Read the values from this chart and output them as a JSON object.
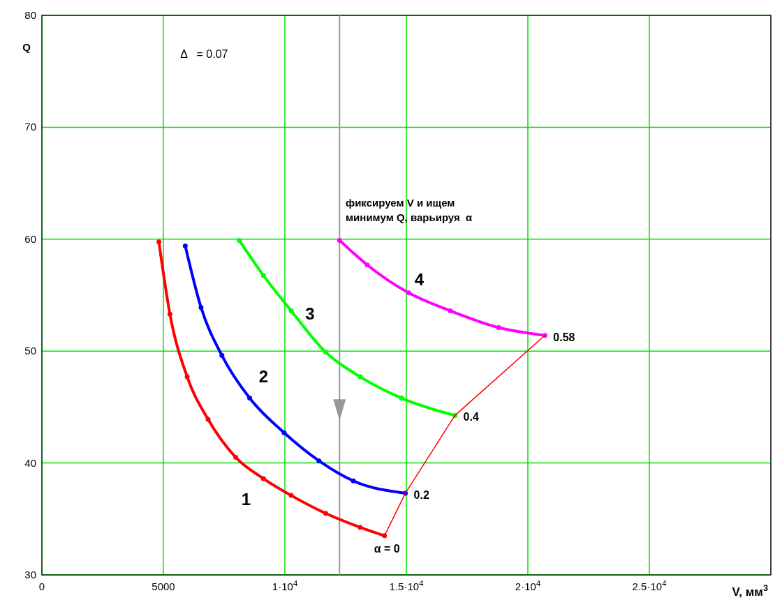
{
  "chart_data": {
    "type": "line",
    "xlabel": "V, мм$^{3}$",
    "ylabel": "Q",
    "xlim": [
      0,
      30000
    ],
    "ylim": [
      30,
      80
    ],
    "xticks": [
      0,
      5000,
      {
        "value": 10000,
        "label": "1·10$^{4}$"
      },
      {
        "value": 15000,
        "label": "1.5·10$^{4}$"
      },
      {
        "value": 20000,
        "label": "2·10$^{4}$"
      },
      {
        "value": 25000,
        "label": "2.5·10$^{4}$"
      }
    ],
    "yticks": [
      30,
      40,
      50,
      60,
      70,
      80
    ],
    "grid": true,
    "marker": "circle",
    "series": [
      {
        "name": "1",
        "color": "#ff0000",
        "x": [
          4815,
          5270,
          5980,
          6840,
          7980,
          9120,
          10260,
          11680,
          13100,
          14100
        ],
        "values": [
          59.75,
          53.3,
          47.7,
          43.9,
          40.5,
          38.6,
          37.1,
          35.5,
          34.25,
          33.5
        ]
      },
      {
        "name": "2",
        "color": "#0000ff",
        "x": [
          5900,
          6550,
          7410,
          8550,
          9970,
          11400,
          12820,
          14960
        ],
        "values": [
          59.4,
          53.9,
          49.6,
          45.8,
          42.7,
          40.2,
          38.4,
          37.3
        ]
      },
      {
        "name": "3",
        "color": "#00ff00",
        "x": [
          8120,
          9120,
          10260,
          11680,
          13100,
          14800,
          17000
        ],
        "values": [
          59.9,
          56.75,
          53.6,
          49.9,
          47.7,
          45.8,
          44.25
        ]
      },
      {
        "name": "4",
        "color": "#ff00ff",
        "x": [
          12250,
          13390,
          15100,
          16810,
          18800,
          20700
        ],
        "values": [
          59.9,
          57.7,
          55.2,
          53.6,
          52.1,
          51.4
        ]
      },
      {
        "color": "#ff0000",
        "marker": "none",
        "x": [
          14100,
          14960,
          17000,
          20700
        ],
        "values": [
          33.5,
          37.3,
          44.25,
          51.4
        ]
      }
    ],
    "ref_lines": [
      {
        "axis": "x",
        "value": 12250,
        "color": "#999999"
      }
    ],
    "annotations": [
      "Δ   = 0.07",
      "фиксируем V и ищем\nминимум Q, варьируя  α",
      {
        "text": "α = 0",
        "x": 14100,
        "y": 33.5
      },
      {
        "text": "0.2",
        "x": 14960,
        "y": 37.3
      },
      {
        "text": "0.4",
        "x": 17000,
        "y": 44.25
      },
      {
        "text": "0.58",
        "x": 20700,
        "y": 51.4
      }
    ]
  }
}
